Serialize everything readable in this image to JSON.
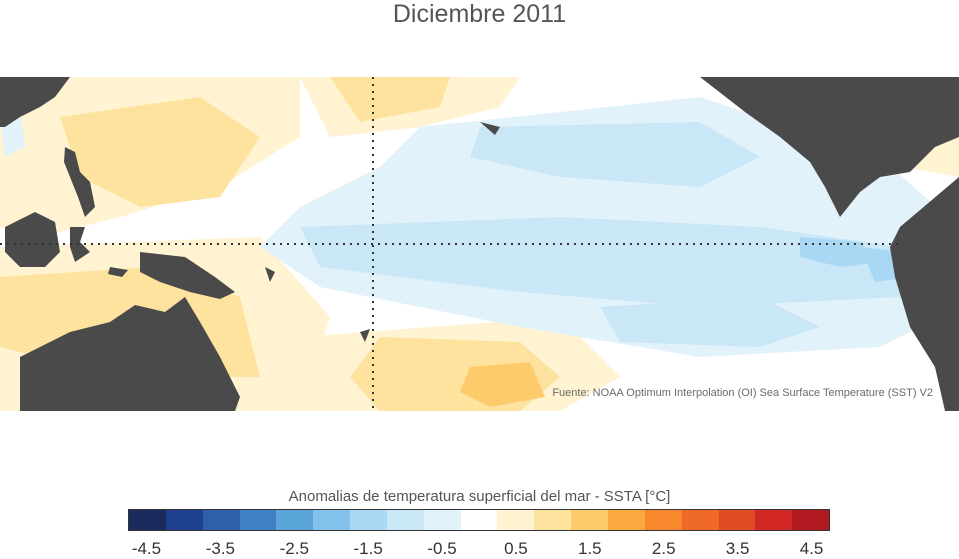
{
  "title": "Diciembre 2011",
  "source": "Fuente: NOAA Optimum Interpolation (OI) Sea Surface Temperature (SST) V2",
  "legend": {
    "title": "Anomalias de temperatura superficial del mar - SSTA  [°C]",
    "colors": [
      "#1b2a5e",
      "#1f3f8f",
      "#2f5fa8",
      "#3f81c2",
      "#5aa6db",
      "#82c2ea",
      "#a8d8f3",
      "#c9e7f7",
      "#e2f2fa",
      "#ffffff",
      "#fff3d2",
      "#fee39f",
      "#fdcb6b",
      "#fba93e",
      "#f8882c",
      "#ef6928",
      "#e04a25",
      "#d12825",
      "#b01a20"
    ],
    "ticks": [
      "-4.5",
      "-3.5",
      "-2.5",
      "-1.5",
      "-0.5",
      "0.5",
      "1.5",
      "2.5",
      "3.5",
      "4.5"
    ]
  },
  "map": {
    "land_color": "#4a4a4a",
    "gridline_style": "dotted",
    "colors": {
      "warm_light": "#fff3d2",
      "warm_mid": "#fee39f",
      "warm_strong": "#fdcb6b",
      "cool_light": "#e2f2fa",
      "cool_mid": "#c9e7f7",
      "cool_strong": "#a8d8f3"
    }
  }
}
